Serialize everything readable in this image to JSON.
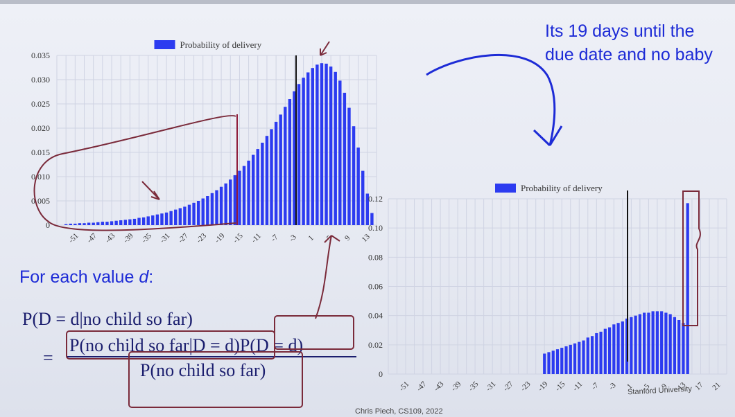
{
  "slide": {
    "note": "Its 19 days until the due date and no baby",
    "heading_text": "For each value ",
    "heading_var": "d",
    "heading_colon": ":",
    "formula_lhs": "P(D = d|no child so far)",
    "equals": "=",
    "numerator": "P(no child so far|D = d)P(D = d)",
    "denominator": "P(no child so far)",
    "credit_left": "Chris Piech, CS109, 2022",
    "credit_right": "Stanford University"
  },
  "colors": {
    "bar": "#2c3bf0",
    "annotation": "#1d2bd6",
    "ink": "#7a2a3a"
  },
  "chart_data": [
    {
      "type": "bar",
      "title": "",
      "legend": "Probability of delivery",
      "xlabel": "",
      "ylabel": "",
      "ylim": [
        0,
        0.035
      ],
      "yticks": [
        "0",
        "0.005",
        "0.010",
        "0.015",
        "0.020",
        "0.025",
        "0.030",
        "0.035"
      ],
      "xticks": [
        "-51",
        "-47",
        "-43",
        "-39",
        "-35",
        "-31",
        "-27",
        "-23",
        "-19",
        "-15",
        "-11",
        "-7",
        "-3",
        "1",
        "5",
        "9",
        "13"
      ],
      "x": [
        -53,
        -52,
        -51,
        -50,
        -49,
        -48,
        -47,
        -46,
        -45,
        -44,
        -43,
        -42,
        -41,
        -40,
        -39,
        -38,
        -37,
        -36,
        -35,
        -34,
        -33,
        -32,
        -31,
        -30,
        -29,
        -28,
        -27,
        -26,
        -25,
        -24,
        -23,
        -22,
        -21,
        -20,
        -19,
        -18,
        -17,
        -16,
        -15,
        -14,
        -13,
        -12,
        -11,
        -10,
        -9,
        -8,
        -7,
        -6,
        -5,
        -4,
        -3,
        -2,
        -1,
        0,
        1,
        2,
        3,
        4,
        5,
        6,
        7,
        8,
        9,
        10,
        11,
        12,
        13,
        14
      ],
      "values": [
        0.0002,
        0.0003,
        0.0003,
        0.0004,
        0.0004,
        0.0005,
        0.0005,
        0.0006,
        0.0007,
        0.0007,
        0.0008,
        0.0009,
        0.001,
        0.0011,
        0.0012,
        0.0013,
        0.0015,
        0.0016,
        0.0018,
        0.002,
        0.0022,
        0.0024,
        0.0026,
        0.0029,
        0.0032,
        0.0035,
        0.0038,
        0.0042,
        0.0046,
        0.005,
        0.0055,
        0.006,
        0.0066,
        0.0072,
        0.0079,
        0.0086,
        0.0094,
        0.0103,
        0.0112,
        0.0122,
        0.0133,
        0.0145,
        0.0157,
        0.017,
        0.0184,
        0.0198,
        0.0213,
        0.0228,
        0.0244,
        0.026,
        0.0276,
        0.0291,
        0.0304,
        0.0315,
        0.0324,
        0.0331,
        0.0334,
        0.0333,
        0.0327,
        0.0316,
        0.0298,
        0.0273,
        0.0242,
        0.0204,
        0.016,
        0.0112,
        0.0065,
        0.0025
      ],
      "grid": true,
      "legend_position": "top-center"
    },
    {
      "type": "bar",
      "title": "",
      "legend": "Probability of delivery",
      "xlabel": "",
      "ylabel": "",
      "ylim": [
        0,
        0.12
      ],
      "yticks": [
        "0",
        "0.02",
        "0.04",
        "0.06",
        "0.08",
        "0.10",
        "0.12"
      ],
      "xticks": [
        "-51",
        "-47",
        "-43",
        "-39",
        "-35",
        "-31",
        "-27",
        "-23",
        "-19",
        "-15",
        "-11",
        "-7",
        "-3",
        "1",
        "5",
        "9",
        "13",
        "17",
        "21"
      ],
      "x": [
        -19,
        -18,
        -17,
        -16,
        -15,
        -14,
        -13,
        -12,
        -11,
        -10,
        -9,
        -8,
        -7,
        -6,
        -5,
        -4,
        -3,
        -2,
        -1,
        0,
        1,
        2,
        3,
        4,
        5,
        6,
        7,
        8,
        9,
        10,
        11,
        12,
        13,
        14
      ],
      "values": [
        0.014,
        0.015,
        0.016,
        0.017,
        0.018,
        0.019,
        0.02,
        0.021,
        0.022,
        0.023,
        0.025,
        0.026,
        0.028,
        0.029,
        0.031,
        0.032,
        0.034,
        0.035,
        0.036,
        0.038,
        0.039,
        0.04,
        0.041,
        0.042,
        0.042,
        0.043,
        0.043,
        0.043,
        0.042,
        0.041,
        0.039,
        0.037,
        0.035,
        0.117
      ],
      "grid": true,
      "legend_position": "top-center"
    }
  ]
}
